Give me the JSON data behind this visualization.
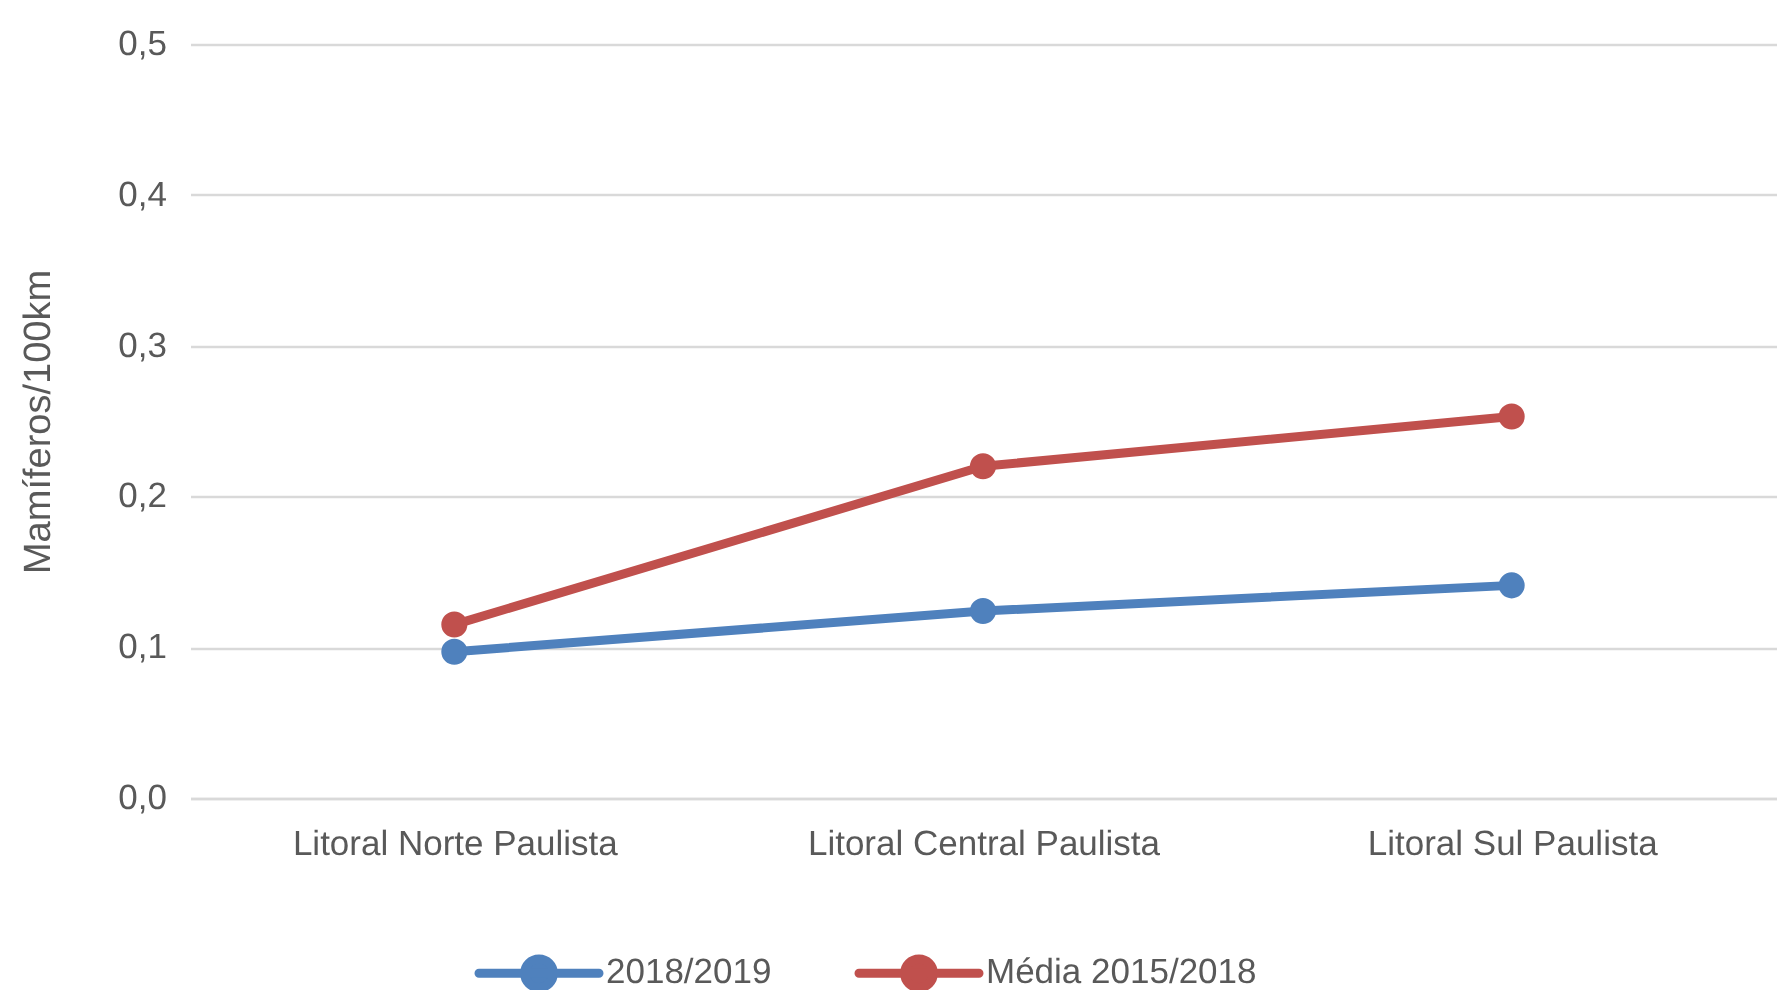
{
  "chart_data": {
    "type": "line",
    "ylabel": "Mamíferos/100km",
    "categories": [
      "Litoral Norte Paulista",
      "Litoral Central Paulista",
      "Litoral Sul Paulista"
    ],
    "series": [
      {
        "name": "2018/2019",
        "color": "#4f81bd",
        "values": [
          0.097,
          0.124,
          0.141
        ]
      },
      {
        "name": "Média 2015/2018",
        "color": "#c0504d",
        "values": [
          0.115,
          0.22,
          0.253
        ]
      }
    ],
    "ylim": [
      0,
      0.5
    ],
    "yticks": [
      {
        "value": 0,
        "label": "0,0"
      },
      {
        "value": 0.1,
        "label": "0,1"
      },
      {
        "value": 0.2,
        "label": "0,2"
      },
      {
        "value": 0.3,
        "label": "0,3"
      },
      {
        "value": 0.4,
        "label": "0,4"
      },
      {
        "value": 0.5,
        "label": "0,5"
      }
    ],
    "grid": "y",
    "legend": "bottom",
    "marker": "circle",
    "line_style": "solid"
  }
}
